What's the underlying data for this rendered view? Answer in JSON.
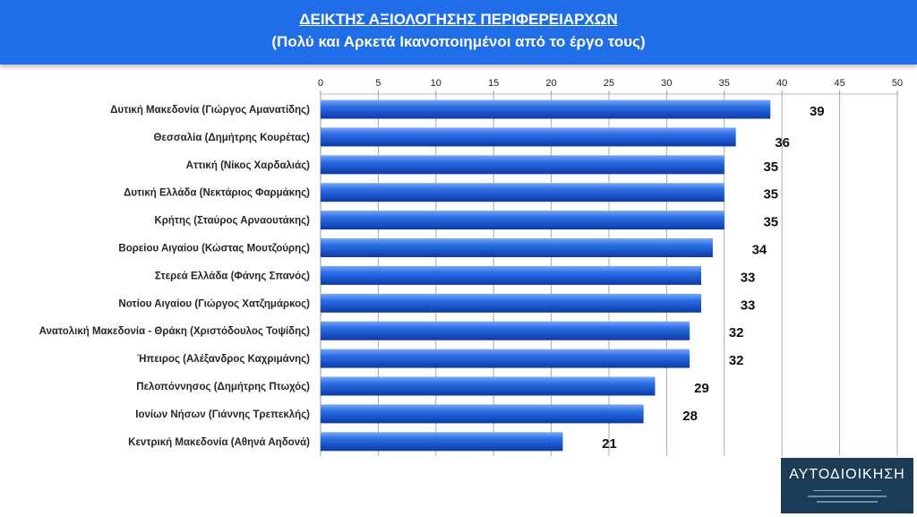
{
  "header": {
    "title": "ΔΕΙΚΤΗΣ ΑΞΙΟΛΟΓΗΣΗΣ ΠΕΡΙΦΕΡΕΙΑΡΧΩΝ",
    "subtitle": "(Πολύ και Αρκετά Ικανοποιημένοι από το έργο τους)"
  },
  "logo": {
    "text": "ΑΥΤΟΔΙΟΙΚΗΣΗ"
  },
  "colors": {
    "banner": "#1f6ee8",
    "bar": "#1a5fe0",
    "bar_light": "#5f95f0",
    "bar_dark": "#0c3aa8",
    "logo_bg": "#1b3b57"
  },
  "chart_data": {
    "type": "bar",
    "orientation": "horizontal",
    "categories": [
      "Δυτική Μακεδονία (Γιώργος Αμανατίδης)",
      "Θεσσαλία (Δημήτρης Κουρέτας)",
      "Αττική (Νίκος Χαρδαλιάς)",
      "Δυτική Ελλάδα (Νεκτάριος Φαρμάκης)",
      "Κρήτης (Σταύρος Αρναουτάκης)",
      "Βορείου Αιγαίου (Κώστας Μουτζούρης)",
      "Στερεά Ελλάδα (Φάνης Σπανός)",
      "Νοτίου Αιγαίου (Γιώργος Χατζημάρκος)",
      "Ανατολική Μακεδονία - Θράκη (Χριστόδουλος Τοψίδης)",
      "Ήπειρος (Αλέξανδρος Καχριμάνης)",
      "Πελοπόννησος (Δημήτρης Πτωχός)",
      "Ιονίων Νήσων (Γιάννης Τρεπεκλής)",
      "Κεντρική Μακεδονία (Αθηνά Αηδονά)"
    ],
    "values": [
      39,
      36,
      35,
      35,
      35,
      34,
      33,
      33,
      32,
      32,
      29,
      28,
      21
    ],
    "data_labels": [
      "39",
      "36",
      "35",
      "35",
      "35",
      "34",
      "33",
      "33",
      "32",
      "32",
      "29",
      "28",
      "21"
    ],
    "xlim": [
      0,
      50
    ],
    "xticks": [
      0,
      5,
      10,
      15,
      20,
      25,
      30,
      35,
      40,
      45,
      50
    ],
    "xtick_labels": [
      "0",
      "5",
      "10",
      "15",
      "20",
      "25",
      "30",
      "35",
      "40",
      "45",
      "50"
    ],
    "axis_position": "top",
    "grid": true
  }
}
